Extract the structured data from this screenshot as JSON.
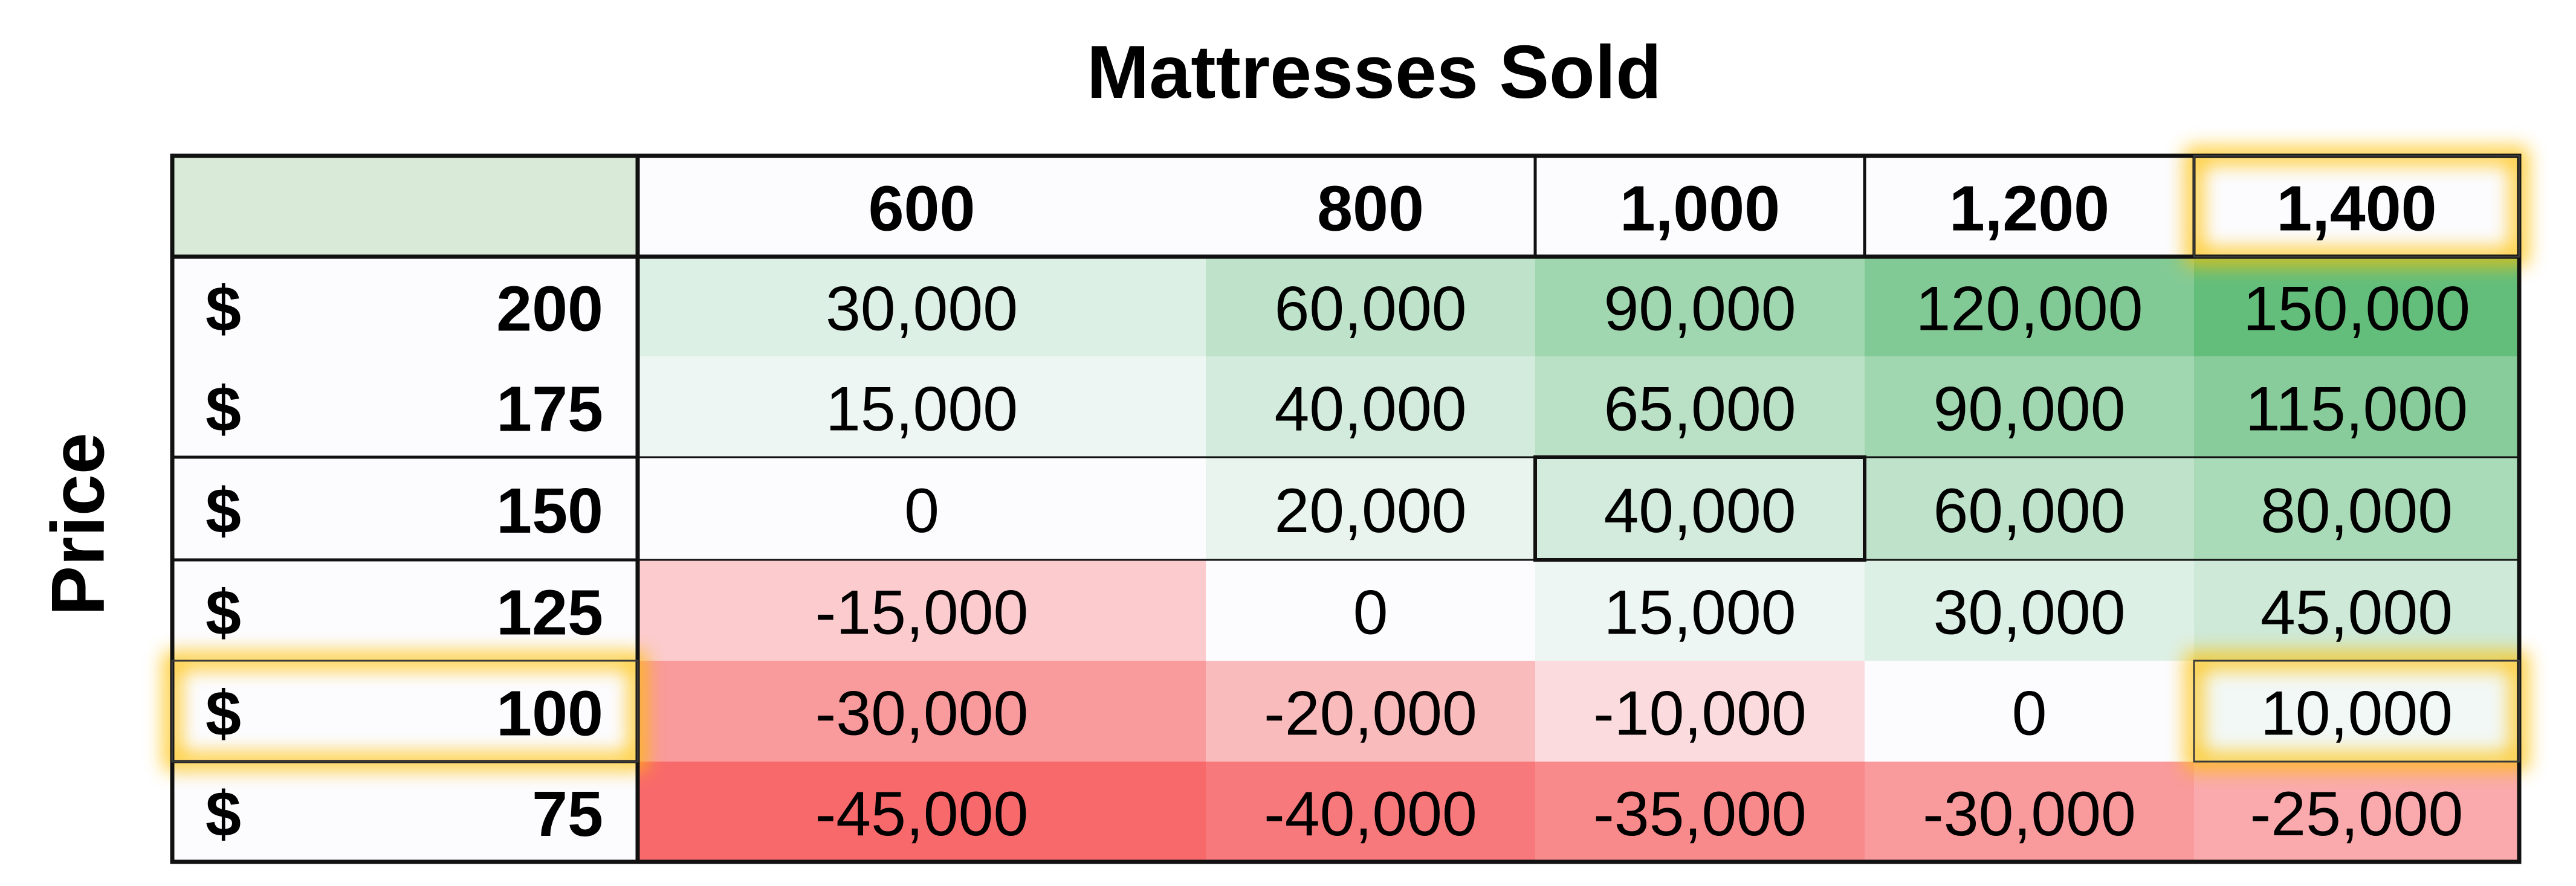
{
  "chart_data": {
    "type": "heatmap",
    "title": "Mattresses Sold",
    "xlabel": "",
    "ylabel": "Price",
    "currency_symbol": "$",
    "columns": [
      "600",
      "800",
      "1,000",
      "1,200",
      "1,400"
    ],
    "rows": [
      {
        "price": "200",
        "values": [
          "30,000",
          "60,000",
          "90,000",
          "120,000",
          "150,000"
        ],
        "numeric": [
          30000,
          60000,
          90000,
          120000,
          150000
        ]
      },
      {
        "price": "175",
        "values": [
          "15,000",
          "40,000",
          "65,000",
          "90,000",
          "115,000"
        ],
        "numeric": [
          15000,
          40000,
          65000,
          90000,
          115000
        ]
      },
      {
        "price": "150",
        "values": [
          "0",
          "20,000",
          "40,000",
          "60,000",
          "80,000"
        ],
        "numeric": [
          0,
          20000,
          40000,
          60000,
          80000
        ]
      },
      {
        "price": "125",
        "values": [
          "-15,000",
          "0",
          "15,000",
          "30,000",
          "45,000"
        ],
        "numeric": [
          -15000,
          0,
          15000,
          30000,
          45000
        ]
      },
      {
        "price": "100",
        "values": [
          "-30,000",
          "-20,000",
          "-10,000",
          "0",
          "10,000"
        ],
        "numeric": [
          -30000,
          -20000,
          -10000,
          0,
          10000
        ]
      },
      {
        "price": "75",
        "values": [
          "-45,000",
          "-40,000",
          "-35,000",
          "-30,000",
          "-25,000"
        ],
        "numeric": [
          -45000,
          -40000,
          -35000,
          -30000,
          -25000
        ]
      }
    ],
    "color_scale": {
      "min": -45000,
      "mid": 0,
      "max": 150000,
      "min_color": "#f8696b",
      "mid_color": "#fcfcff",
      "max_color": "#63be7b"
    },
    "header_color": "#d9ead9",
    "header_cell_color": "#fcfcff",
    "highlight_color": "#ffc000",
    "highlighted_cells": {
      "column_header": "1,400",
      "row_header": "100",
      "cell": {
        "row": "100",
        "column": "1,400"
      },
      "base_case_cell": {
        "row": "150",
        "column": "1,000"
      }
    }
  }
}
